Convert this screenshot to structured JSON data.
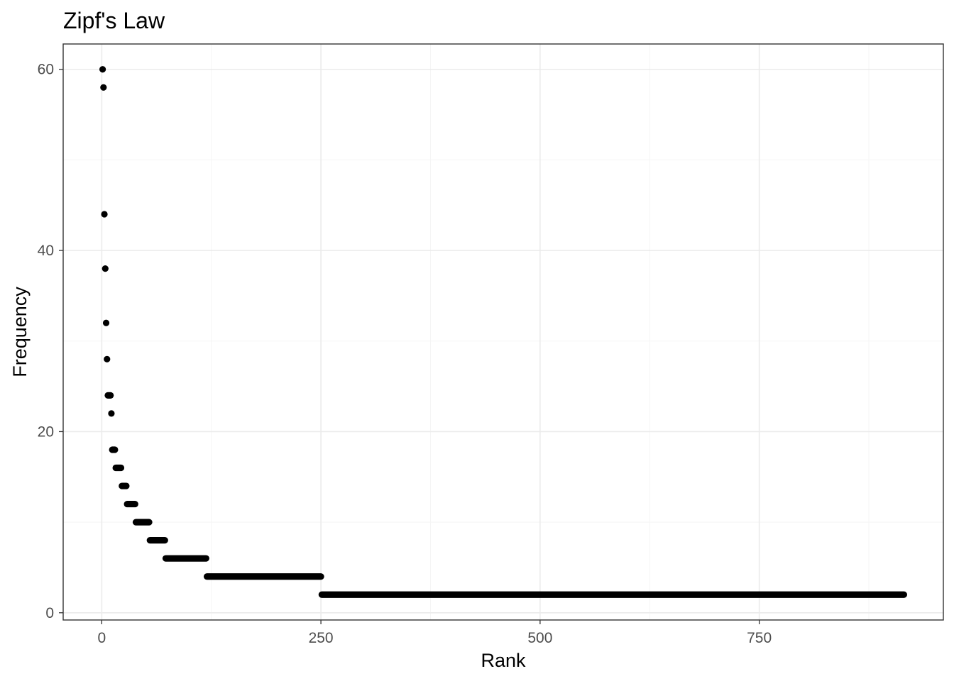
{
  "chart_data": {
    "type": "scatter",
    "title": "Zipf's Law",
    "xlabel": "Rank",
    "ylabel": "Frequency",
    "xlim": [
      -44,
      960
    ],
    "ylim": [
      -0.8,
      62.8
    ],
    "x_ticks": [
      0,
      250,
      500,
      750
    ],
    "x_minor_ticks": [
      125,
      375,
      625,
      875
    ],
    "y_ticks": [
      0,
      20,
      40,
      60
    ],
    "y_minor_ticks": [
      10,
      30,
      50
    ],
    "tick_labels_x": [
      "0",
      "250",
      "500",
      "750"
    ],
    "tick_labels_y": [
      "0",
      "20",
      "40",
      "60"
    ],
    "grid": true,
    "legend": "none",
    "point_color": "#000000",
    "points": [
      {
        "x": 1,
        "y": 60
      },
      {
        "x": 2,
        "y": 58
      },
      {
        "x": 3,
        "y": 44
      },
      {
        "x": 4,
        "y": 38
      },
      {
        "x": 5,
        "y": 32
      },
      {
        "x": 6,
        "y": 28
      },
      {
        "x": 7,
        "y": 24
      },
      {
        "x": 8,
        "y": 24
      },
      {
        "x": 9,
        "y": 24
      },
      {
        "x": 10,
        "y": 24
      },
      {
        "x": 11,
        "y": 22
      }
    ],
    "runs": [
      {
        "y": 18,
        "x_from": 12,
        "x_to": 15
      },
      {
        "y": 16,
        "x_from": 16,
        "x_to": 22
      },
      {
        "y": 14,
        "x_from": 23,
        "x_to": 28
      },
      {
        "y": 12,
        "x_from": 29,
        "x_to": 38
      },
      {
        "y": 10,
        "x_from": 39,
        "x_to": 54
      },
      {
        "y": 8,
        "x_from": 55,
        "x_to": 72
      },
      {
        "y": 6,
        "x_from": 73,
        "x_to": 119
      },
      {
        "y": 4,
        "x_from": 120,
        "x_to": 250
      },
      {
        "y": 2,
        "x_from": 251,
        "x_to": 915
      }
    ]
  }
}
